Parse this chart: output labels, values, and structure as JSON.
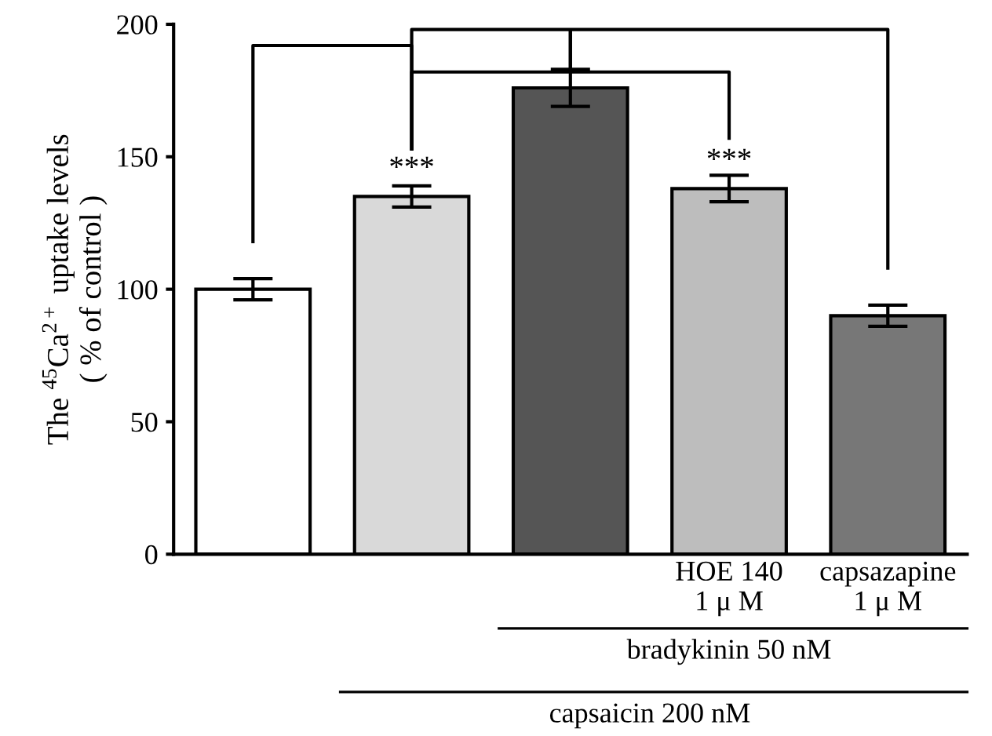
{
  "chart_data": {
    "type": "bar",
    "categories": [
      null,
      null,
      null,
      "HOE 140\n1 μ M",
      "capsazapine\n1 μ M"
    ],
    "values": [
      100,
      135,
      176,
      138,
      90
    ],
    "errors": [
      4,
      4,
      7,
      5,
      4
    ],
    "colors": [
      "#ffffff",
      "#d9d9d9",
      "#555555",
      "#bdbdbd",
      "#777777"
    ],
    "ylabel": "The $^{45}$Ca$^{2+}$ uptake levels\n( % of control )",
    "ylim": [
      0,
      200
    ],
    "yticks": [
      0,
      50,
      100,
      150,
      200
    ],
    "annotations": [
      {
        "text": "***",
        "y": 140
      },
      {
        "text": "***",
        "y": 143
      },
      "bradykinin 50 nM",
      "capsaicin 200 nM"
    ],
    "grid": false,
    "legend": false
  }
}
